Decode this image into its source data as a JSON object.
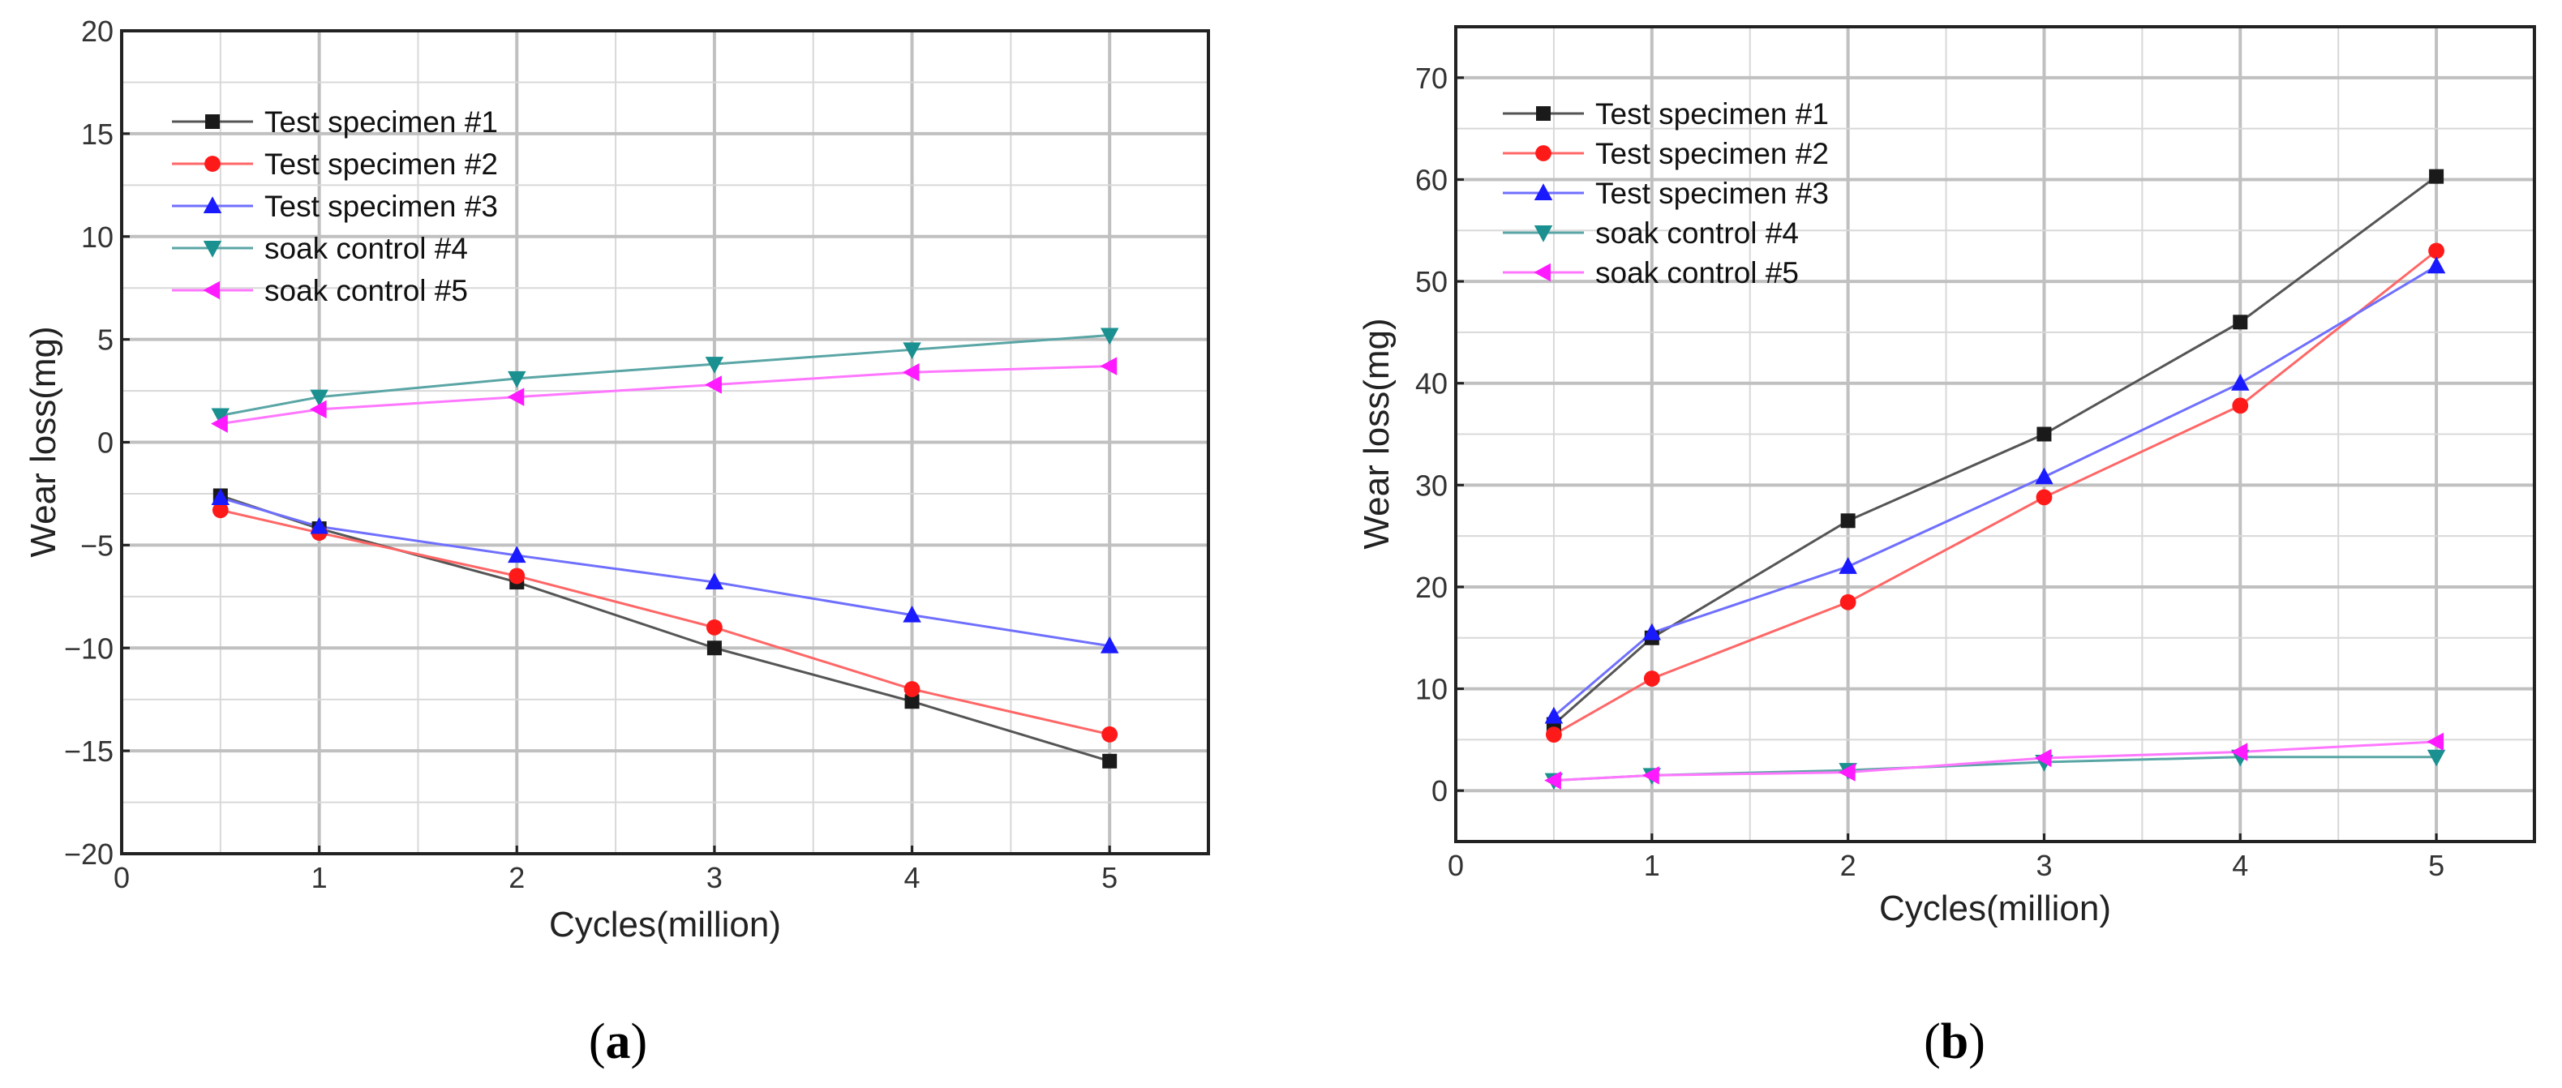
{
  "colors": {
    "series1": "#1a1a1a",
    "series2": "#ff1a1a",
    "series3": "#1a1aff",
    "series4": "#1a9090",
    "series5": "#ff1aff",
    "line1": "#555555",
    "line2": "#ff6666",
    "line3": "#6f6fff",
    "line4": "#5aa5a5",
    "line5": "#ff77ff",
    "grid_major": "#c0c0c0",
    "grid_minor": "#d8d8d8"
  },
  "chart_data": [
    {
      "type": "line",
      "caption": {
        "open": "(",
        "label": "a",
        "close": ")"
      },
      "xlabel": "Cycles(million)",
      "ylabel": "Wear loss(mg)",
      "xlim": [
        0,
        5.5
      ],
      "ylim": [
        -20,
        20
      ],
      "xticks": [
        0,
        1,
        2,
        3,
        4,
        5
      ],
      "yticks": [
        -20,
        -15,
        -10,
        -5,
        0,
        5,
        10,
        15,
        20
      ],
      "ytick_labels": [
        "−20",
        "−15",
        "−10",
        "−5",
        "0",
        "5",
        "10",
        "15",
        "20"
      ],
      "grid": true,
      "legend_position": "top-left",
      "x": [
        0.5,
        1,
        2,
        3,
        4,
        5
      ],
      "series": [
        {
          "name": "Test specimen #1",
          "marker": "square",
          "values": [
            -2.6,
            -4.2,
            -6.8,
            -10.0,
            -12.6,
            -15.5
          ]
        },
        {
          "name": "Test specimen #2",
          "marker": "circle",
          "values": [
            -3.3,
            -4.4,
            -6.5,
            -9.0,
            -12.0,
            -14.2
          ]
        },
        {
          "name": "Test specimen #3",
          "marker": "triangle-up",
          "values": [
            -2.7,
            -4.1,
            -5.5,
            -6.8,
            -8.4,
            -9.9
          ]
        },
        {
          "name": "soak control #4",
          "marker": "triangle-down",
          "values": [
            1.3,
            2.2,
            3.1,
            3.8,
            4.5,
            5.2
          ]
        },
        {
          "name": "soak control #5",
          "marker": "triangle-left",
          "values": [
            0.9,
            1.6,
            2.2,
            2.8,
            3.4,
            3.7
          ]
        }
      ]
    },
    {
      "type": "line",
      "caption": {
        "open": "(",
        "label": "b",
        "close": ")"
      },
      "xlabel": "Cycles(million)",
      "ylabel": "Wear loss(mg)",
      "xlim": [
        0,
        5.5
      ],
      "ylim": [
        -5,
        75
      ],
      "xticks": [
        0,
        1,
        2,
        3,
        4,
        5
      ],
      "yticks": [
        0,
        10,
        20,
        30,
        40,
        50,
        60,
        70
      ],
      "ytick_labels": [
        "0",
        "10",
        "20",
        "30",
        "40",
        "50",
        "60",
        "70"
      ],
      "grid": true,
      "legend_position": "top-left",
      "x": [
        0.5,
        1,
        2,
        3,
        4,
        5
      ],
      "series": [
        {
          "name": "Test specimen #1",
          "marker": "square",
          "values": [
            6.5,
            15.0,
            26.5,
            35.0,
            46.0,
            60.3
          ]
        },
        {
          "name": "Test specimen #2",
          "marker": "circle",
          "values": [
            5.5,
            11.0,
            18.5,
            28.8,
            37.8,
            53.0
          ]
        },
        {
          "name": "Test specimen #3",
          "marker": "triangle-up",
          "values": [
            7.3,
            15.5,
            22.0,
            30.8,
            40.0,
            51.5
          ]
        },
        {
          "name": "soak control #4",
          "marker": "triangle-down",
          "values": [
            1.0,
            1.5,
            2.0,
            2.8,
            3.3,
            3.3
          ]
        },
        {
          "name": "soak control #5",
          "marker": "triangle-left",
          "values": [
            1.0,
            1.5,
            1.8,
            3.2,
            3.8,
            4.8
          ]
        }
      ]
    }
  ]
}
